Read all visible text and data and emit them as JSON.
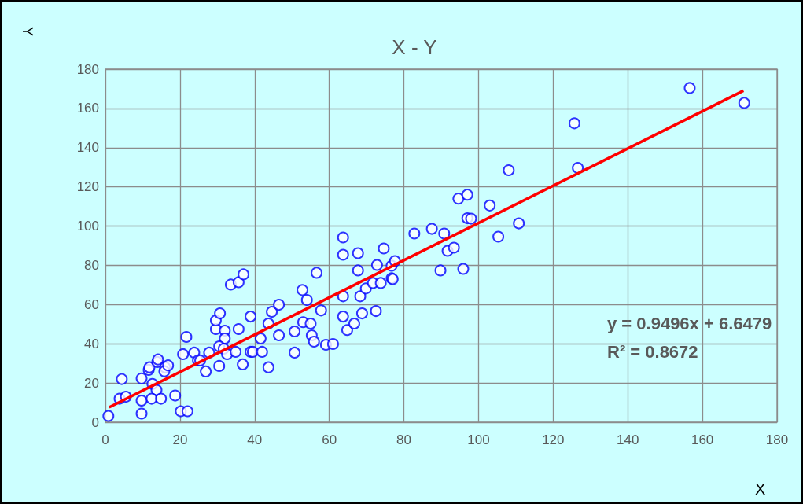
{
  "chart_data": {
    "type": "scatter",
    "title": "X - Y",
    "xlabel": "X",
    "ylabel": "Y",
    "xlim": [
      0,
      180
    ],
    "xticks": [
      0,
      20,
      40,
      60,
      80,
      100,
      120,
      140,
      160,
      180
    ],
    "ylim": [
      0,
      180
    ],
    "yticks": [
      0,
      20,
      40,
      60,
      80,
      100,
      120,
      140,
      160,
      180
    ],
    "grid": true,
    "marker": "circle",
    "annotations": [
      "y = 0.9496x + 6.6479",
      "R² = 0.8672"
    ],
    "series": [
      {
        "color": "#0000ff",
        "x": [
          0.8,
          4.4,
          3.8,
          5.5,
          9.7,
          9.7,
          9.7,
          11.6,
          11.8,
          12.6,
          13.7,
          13.9,
          14.1,
          12.4,
          14.9,
          16,
          15.8,
          16.8,
          18.7,
          20.2,
          22,
          20.8,
          21.7,
          23.8,
          24.8,
          25.4,
          26.9,
          27.8,
          30.5,
          29.6,
          29.6,
          30.7,
          32,
          32,
          30.5,
          31.7,
          32.6,
          33.6,
          35.7,
          37,
          34.9,
          35.7,
          36.8,
          38.9,
          38.9,
          39.5,
          42,
          41.6,
          43.7,
          43.7,
          44.6,
          46.5,
          46.5,
          50.7,
          50.7,
          52.8,
          53,
          54,
          55,
          55.3,
          55.9,
          56.6,
          57.8,
          59.1,
          61,
          63.7,
          63.7,
          63.7,
          63.7,
          64.8,
          66.7,
          67.7,
          67.7,
          68.3,
          68.8,
          69.8,
          71.7,
          72.5,
          72.8,
          73.8,
          74.6,
          76.7,
          76.7,
          77,
          77.6,
          82.8,
          87.5,
          89.8,
          90.8,
          91.7,
          93.4,
          94.6,
          95.9,
          97,
          97,
          98,
          103,
          105.3,
          108.1,
          110.8,
          125.7,
          126.6,
          156.6,
          171.2
        ],
        "values": [
          3.2,
          22,
          12,
          13,
          4.4,
          11,
          22.3,
          26.7,
          28,
          19.5,
          16.4,
          30.7,
          32,
          12,
          12,
          28,
          26,
          29,
          13.6,
          5.6,
          5.6,
          34.7,
          43.5,
          35.5,
          31.5,
          31.5,
          25.9,
          35.5,
          28.7,
          47.5,
          51.9,
          55.5,
          46.7,
          42.7,
          38.7,
          37.5,
          34.7,
          70.2,
          71.4,
          75.4,
          35.9,
          47.5,
          29.5,
          53.9,
          35.9,
          35.9,
          35.9,
          42.7,
          28,
          50.3,
          56.3,
          59.9,
          44.3,
          46.3,
          35.5,
          67.4,
          51,
          62.3,
          50.3,
          44.3,
          41.1,
          76.2,
          57,
          39.5,
          39.9,
          94.2,
          85.4,
          64.2,
          53.9,
          47,
          50.3,
          86.2,
          77.4,
          64.2,
          55.5,
          68.2,
          71,
          56.7,
          80.2,
          71,
          88.6,
          79.8,
          73.4,
          73,
          82.2,
          96.2,
          98.6,
          77.4,
          96.2,
          87.4,
          89,
          114,
          78.2,
          116,
          104,
          103.8,
          110.5,
          94.6,
          128.5,
          101.4,
          152.4,
          129.7,
          170.4,
          162.8
        ]
      },
      {
        "type": "line",
        "color": "#ff0000",
        "x": [
          1,
          171
        ],
        "values": [
          7.6,
          169.0
        ],
        "marker": "none"
      }
    ]
  }
}
